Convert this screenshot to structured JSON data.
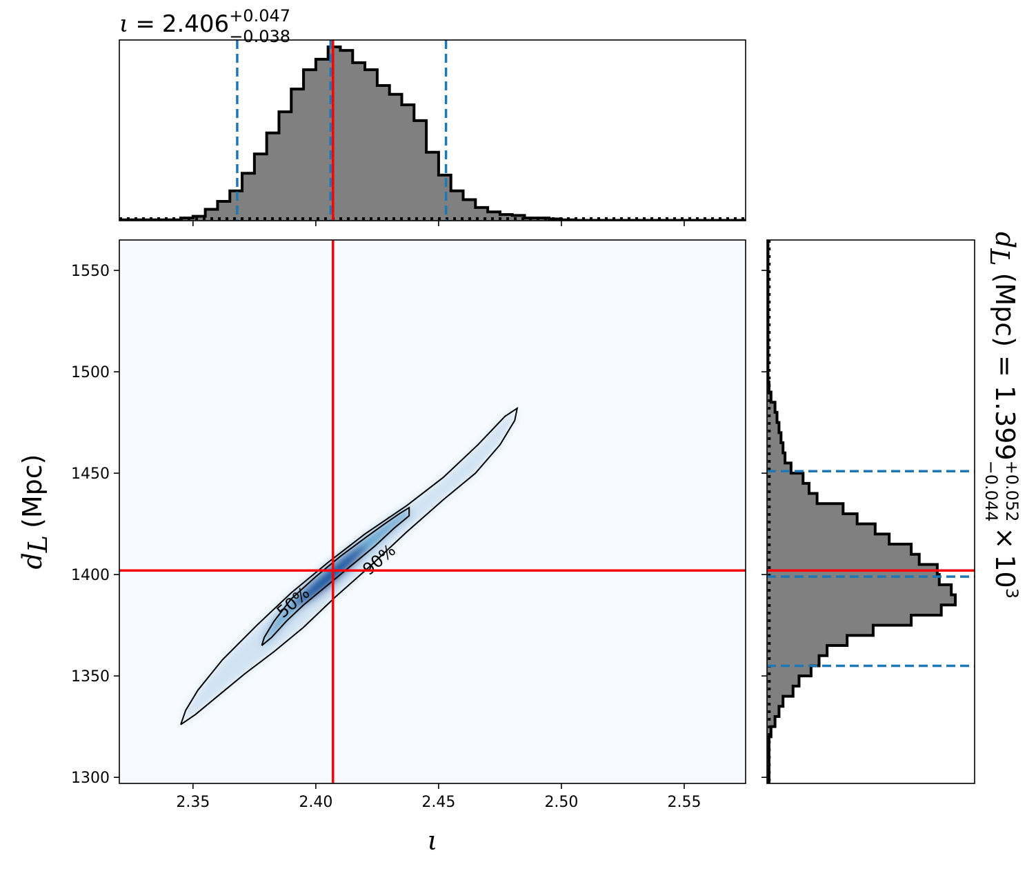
{
  "chart_data": {
    "type": "corner",
    "x_axis": {
      "symbol": "ι",
      "range": [
        2.32,
        2.575
      ],
      "ticks": [
        2.35,
        2.4,
        2.45,
        2.5,
        2.55
      ],
      "tick_labels": [
        "2.35",
        "2.40",
        "2.45",
        "2.50",
        "2.55"
      ]
    },
    "y_axis": {
      "symbol": "d",
      "subscript": "L",
      "unit": "(Mpc)",
      "range": [
        1297,
        1565
      ],
      "ticks": [
        1300,
        1350,
        1400,
        1450,
        1500,
        1550
      ],
      "tick_labels": [
        "1300",
        "1350",
        "1400",
        "1450",
        "1500",
        "1550"
      ]
    },
    "top_title": {
      "symbol": "ι",
      "equals": "=",
      "value": "2.406",
      "upper": "+0.047",
      "lower": "−0.038"
    },
    "right_title": {
      "symbol": "d",
      "subscript": "L",
      "unit": "(Mpc)",
      "equals": "=",
      "value": "1.399",
      "upper": "+0.052",
      "lower": "−0.044",
      "times": "×",
      "base": "10",
      "exponent": "3"
    },
    "truth": {
      "x": 2.407,
      "y": 1402
    },
    "x_marginal": {
      "quantile_lines": [
        2.368,
        2.406,
        2.453
      ],
      "hist_edges": [
        2.32,
        2.345,
        2.35,
        2.355,
        2.36,
        2.365,
        2.37,
        2.375,
        2.38,
        2.385,
        2.39,
        2.395,
        2.4,
        2.405,
        2.41,
        2.415,
        2.42,
        2.425,
        2.43,
        2.435,
        2.44,
        2.445,
        2.45,
        2.455,
        2.46,
        2.465,
        2.47,
        2.475,
        2.48,
        2.485,
        2.49,
        2.495,
        2.5,
        2.505,
        2.575
      ],
      "hist_values": [
        0.005,
        0.015,
        0.025,
        0.065,
        0.11,
        0.17,
        0.27,
        0.38,
        0.5,
        0.62,
        0.75,
        0.86,
        0.92,
        0.99,
        0.97,
        0.9,
        0.86,
        0.77,
        0.72,
        0.66,
        0.57,
        0.39,
        0.26,
        0.17,
        0.12,
        0.075,
        0.05,
        0.035,
        0.03,
        0.015,
        0.015,
        0.01,
        0.005,
        0.002
      ],
      "prior_level": 0.012
    },
    "y_marginal": {
      "quantile_lines": [
        1355,
        1399,
        1451
      ],
      "hist_edges": [
        1297,
        1320,
        1325,
        1330,
        1335,
        1340,
        1345,
        1350,
        1355,
        1360,
        1365,
        1370,
        1375,
        1380,
        1385,
        1390,
        1395,
        1400,
        1405,
        1410,
        1415,
        1420,
        1425,
        1430,
        1435,
        1440,
        1445,
        1450,
        1455,
        1460,
        1465,
        1470,
        1475,
        1480,
        1485,
        1490,
        1495,
        1565
      ],
      "hist_values": [
        0.01,
        0.02,
        0.04,
        0.06,
        0.08,
        0.13,
        0.16,
        0.22,
        0.26,
        0.3,
        0.4,
        0.53,
        0.72,
        0.87,
        0.94,
        0.92,
        0.86,
        0.85,
        0.76,
        0.72,
        0.61,
        0.54,
        0.45,
        0.38,
        0.25,
        0.21,
        0.18,
        0.12,
        0.09,
        0.08,
        0.07,
        0.06,
        0.05,
        0.04,
        0.02,
        0.01,
        0.005
      ],
      "prior_level": 0.012
    },
    "joint": {
      "density_center": {
        "x": 2.406,
        "y": 1399
      },
      "contours": [
        {
          "label": "50%",
          "label_at": {
            "x": 2.391,
            "y": 1386
          },
          "points": [
            [
              2.378,
              1365
            ],
            [
              2.379,
              1369
            ],
            [
              2.383,
              1377
            ],
            [
              2.39,
              1388
            ],
            [
              2.4,
              1399
            ],
            [
              2.41,
              1409
            ],
            [
              2.42,
              1418
            ],
            [
              2.428,
              1425
            ],
            [
              2.434,
              1430
            ],
            [
              2.438,
              1433
            ],
            [
              2.438,
              1429
            ],
            [
              2.432,
              1423
            ],
            [
              2.424,
              1414
            ],
            [
              2.412,
              1402
            ],
            [
              2.403,
              1393
            ],
            [
              2.395,
              1385
            ],
            [
              2.388,
              1377
            ],
            [
              2.382,
              1369
            ],
            [
              2.378,
              1365
            ]
          ]
        },
        {
          "label": "90%",
          "label_at": {
            "x": 2.426,
            "y": 1407
          },
          "points": [
            [
              2.345,
              1326
            ],
            [
              2.347,
              1333
            ],
            [
              2.352,
              1343
            ],
            [
              2.362,
              1358
            ],
            [
              2.376,
              1375
            ],
            [
              2.39,
              1391
            ],
            [
              2.405,
              1406
            ],
            [
              2.42,
              1420
            ],
            [
              2.437,
              1434
            ],
            [
              2.452,
              1448
            ],
            [
              2.466,
              1464
            ],
            [
              2.477,
              1478
            ],
            [
              2.482,
              1482
            ],
            [
              2.481,
              1476
            ],
            [
              2.475,
              1464
            ],
            [
              2.465,
              1450
            ],
            [
              2.452,
              1437
            ],
            [
              2.437,
              1421
            ],
            [
              2.422,
              1404
            ],
            [
              2.408,
              1389
            ],
            [
              2.395,
              1374
            ],
            [
              2.383,
              1362
            ],
            [
              2.371,
              1351
            ],
            [
              2.36,
              1340
            ],
            [
              2.351,
              1331
            ],
            [
              2.345,
              1326
            ]
          ]
        }
      ]
    }
  }
}
